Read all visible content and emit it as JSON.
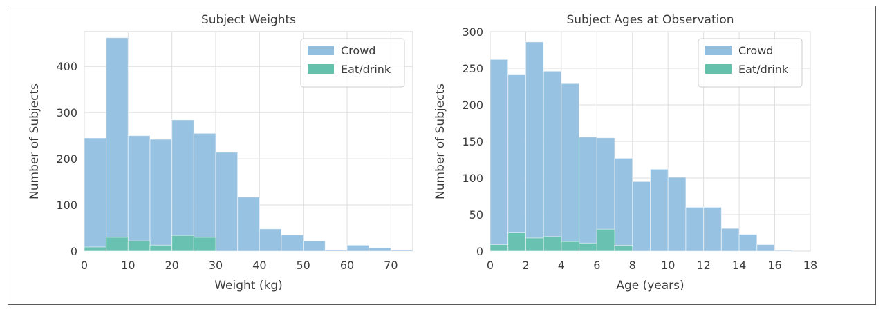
{
  "chart_data": [
    {
      "type": "bar",
      "title": "Subject Weights",
      "xlabel": "Weight (kg)",
      "ylabel": "Number of Subjects",
      "xlim": [
        0,
        75
      ],
      "ylim": [
        0,
        475
      ],
      "xticks": [
        0,
        10,
        20,
        30,
        40,
        50,
        60,
        70
      ],
      "yticks": [
        0,
        100,
        200,
        300,
        400
      ],
      "grid": true,
      "legend_position": "top-right",
      "bin_edges": [
        0,
        5,
        10,
        15,
        20,
        25,
        30,
        35,
        40,
        45,
        50,
        55,
        60,
        65,
        70,
        75
      ],
      "series": [
        {
          "name": "Crowd",
          "color": "#92bfdf",
          "values": [
            245,
            462,
            250,
            242,
            284,
            255,
            214,
            117,
            48,
            35,
            22,
            2,
            13,
            7,
            2
          ]
        },
        {
          "name": "Eat/drink",
          "color": "#64c2ac",
          "values": [
            9,
            30,
            22,
            13,
            34,
            30,
            0,
            0,
            0,
            0,
            0,
            0,
            0,
            0,
            0
          ]
        }
      ]
    },
    {
      "type": "bar",
      "title": "Subject Ages at Observation",
      "xlabel": "Age (years)",
      "ylabel": "Number of Subjects",
      "xlim": [
        0,
        18
      ],
      "ylim": [
        0,
        300
      ],
      "xticks": [
        0,
        2,
        4,
        6,
        8,
        10,
        12,
        14,
        16,
        18
      ],
      "yticks": [
        0,
        50,
        100,
        150,
        200,
        250,
        300
      ],
      "grid": true,
      "legend_position": "top-right",
      "bin_edges": [
        0,
        1,
        2,
        3,
        4,
        5,
        6,
        7,
        8,
        9,
        10,
        11,
        12,
        13,
        14,
        15,
        16,
        17
      ],
      "series": [
        {
          "name": "Crowd",
          "color": "#92bfdf",
          "values": [
            262,
            241,
            286,
            246,
            229,
            156,
            155,
            127,
            95,
            112,
            101,
            60,
            60,
            31,
            23,
            9,
            1
          ]
        },
        {
          "name": "Eat/drink",
          "color": "#64c2ac",
          "values": [
            9,
            25,
            18,
            20,
            13,
            11,
            30,
            8,
            0,
            0,
            0,
            0,
            0,
            0,
            0,
            0,
            0
          ]
        }
      ]
    }
  ]
}
